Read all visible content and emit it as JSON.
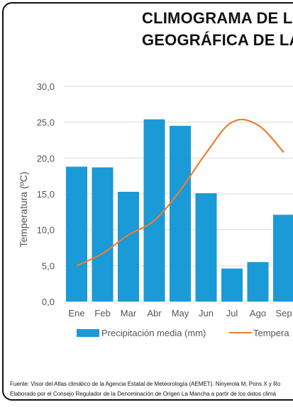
{
  "title_lines": [
    "CLIMOGRAMA DE L",
    "GEOGRÁFICA DE LA"
  ],
  "chart_data": {
    "type": "bar",
    "categories": [
      "Ene",
      "Feb",
      "Mar",
      "Abr",
      "May",
      "Jun",
      "Jul",
      "Ago",
      "Sep"
    ],
    "series": [
      {
        "name": "Precipitación media (mm)",
        "type": "bar",
        "color": "#1a9ad6",
        "values": [
          18.8,
          18.7,
          15.3,
          25.4,
          24.5,
          15.1,
          4.6,
          5.5,
          12.1
        ]
      },
      {
        "name": "Tempera",
        "type": "line",
        "color": "#ed7d31",
        "values": [
          5.0,
          6.7,
          9.3,
          11.3,
          15.5,
          20.7,
          25.0,
          24.6,
          20.8
        ]
      }
    ],
    "ylabel": "Temperatura (ºC)",
    "ylim": [
      0,
      30
    ],
    "yticks": [
      "0,0",
      "5,0",
      "10,0",
      "15,0",
      "20,0",
      "25,0",
      "30,0"
    ],
    "grid": true,
    "legend_position": "bottom"
  },
  "source_lines": [
    "Fuente: Visor del Atlas climático de la Agencia Estatal de Meteorología (AEMET). Ninyerola M, Pons X y Ro",
    "Elaborado por el Consejo Regulador de la Denominación de Origen La Mancha a partir de los datos climá"
  ]
}
